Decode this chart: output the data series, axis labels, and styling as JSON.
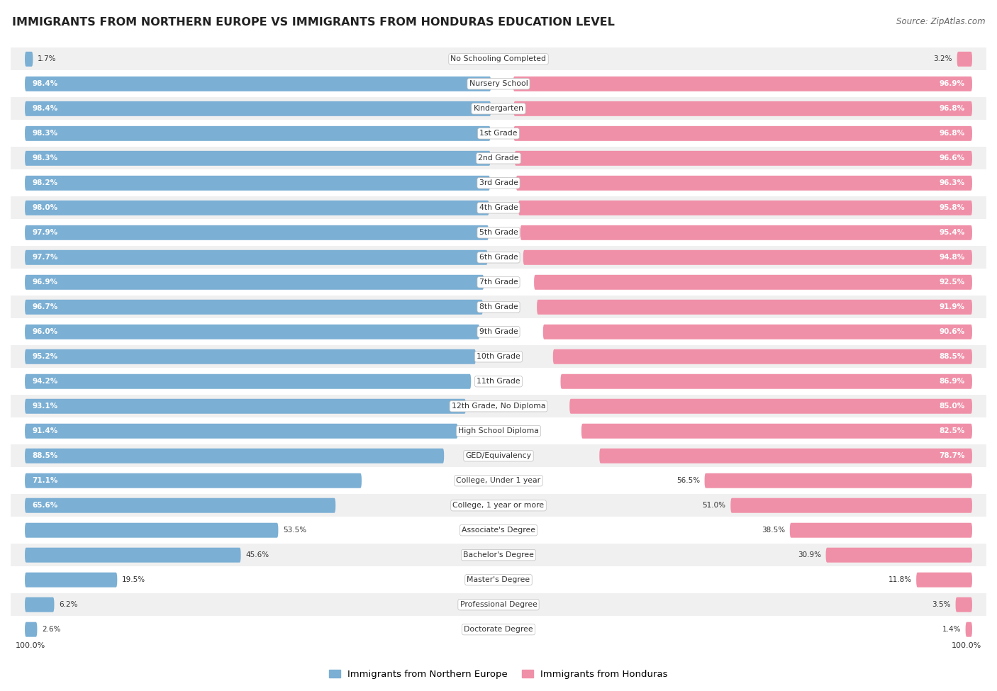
{
  "title": "IMMIGRANTS FROM NORTHERN EUROPE VS IMMIGRANTS FROM HONDURAS EDUCATION LEVEL",
  "source": "Source: ZipAtlas.com",
  "categories": [
    "No Schooling Completed",
    "Nursery School",
    "Kindergarten",
    "1st Grade",
    "2nd Grade",
    "3rd Grade",
    "4th Grade",
    "5th Grade",
    "6th Grade",
    "7th Grade",
    "8th Grade",
    "9th Grade",
    "10th Grade",
    "11th Grade",
    "12th Grade, No Diploma",
    "High School Diploma",
    "GED/Equivalency",
    "College, Under 1 year",
    "College, 1 year or more",
    "Associate's Degree",
    "Bachelor's Degree",
    "Master's Degree",
    "Professional Degree",
    "Doctorate Degree"
  ],
  "north_europe": [
    1.7,
    98.4,
    98.4,
    98.3,
    98.3,
    98.2,
    98.0,
    97.9,
    97.7,
    96.9,
    96.7,
    96.0,
    95.2,
    94.2,
    93.1,
    91.4,
    88.5,
    71.1,
    65.6,
    53.5,
    45.6,
    19.5,
    6.2,
    2.6
  ],
  "honduras": [
    3.2,
    96.9,
    96.8,
    96.8,
    96.6,
    96.3,
    95.8,
    95.4,
    94.8,
    92.5,
    91.9,
    90.6,
    88.5,
    86.9,
    85.0,
    82.5,
    78.7,
    56.5,
    51.0,
    38.5,
    30.9,
    11.8,
    3.5,
    1.4
  ],
  "color_north": "#7bafd4",
  "color_honduras": "#f090a8",
  "background_row_light": "#f0f0f0",
  "background_row_white": "#ffffff",
  "label_inside_threshold": 60.0
}
